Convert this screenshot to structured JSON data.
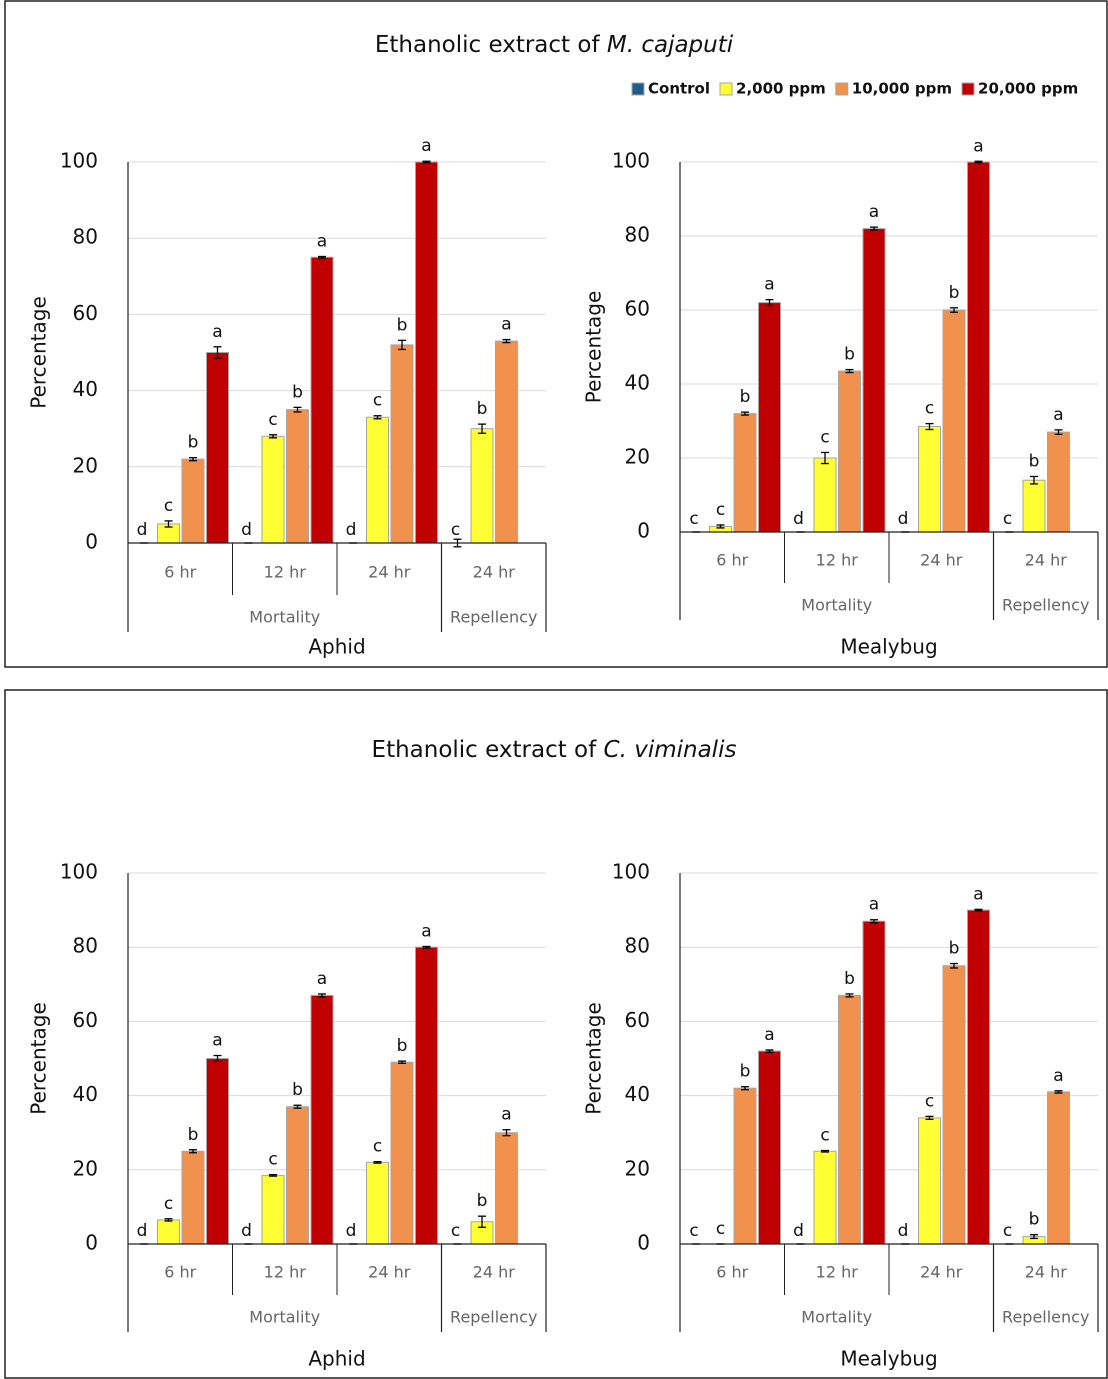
{
  "chart_data": [
    {
      "type": "bar",
      "title_prefix": "Ethanolic extract of",
      "title_species": "M. cajaputi",
      "legend": "top-right",
      "xlabel": "Aphid",
      "ylabel": "Percentage",
      "groups": [
        {
          "name": "Mortality",
          "categories": [
            "6 hr",
            "12 hr",
            "24 hr"
          ]
        },
        {
          "name": "Repellency",
          "categories": [
            "24 hr"
          ]
        }
      ],
      "ylim": [
        0,
        100
      ],
      "yticks": [
        0,
        20,
        40,
        60,
        80,
        100
      ],
      "grid": true,
      "series": [
        {
          "name": "Control",
          "color": "#1f5c8a",
          "values": [
            0,
            0,
            0,
            0
          ],
          "errors": [
            0,
            0,
            0,
            1
          ],
          "letters": [
            "d",
            "d",
            "d",
            "c"
          ]
        },
        {
          "name": "2,000 ppm",
          "color": "#ffff33",
          "values": [
            5,
            28,
            33,
            30
          ],
          "errors": [
            0.8,
            0.4,
            0.4,
            1.2
          ],
          "letters": [
            "c",
            "c",
            "c",
            "b"
          ]
        },
        {
          "name": "10,000 ppm",
          "color": "#f0914e",
          "values": [
            22,
            35,
            52,
            53
          ],
          "errors": [
            0.4,
            0.6,
            1.2,
            0.4
          ],
          "letters": [
            "b",
            "b",
            "b",
            "a"
          ]
        },
        {
          "name": "20,000 ppm",
          "color": "#c00000",
          "values": [
            50,
            75,
            100,
            null
          ],
          "errors": [
            1.5,
            0.2,
            0.2,
            null
          ],
          "letters": [
            "a",
            "a",
            "a",
            null
          ]
        }
      ]
    },
    {
      "type": "bar",
      "xlabel": "Mealybug",
      "ylabel": "Percentage",
      "groups": [
        {
          "name": "Mortality",
          "categories": [
            "6 hr",
            "12 hr",
            "24 hr"
          ]
        },
        {
          "name": "Repellency",
          "categories": [
            "24 hr"
          ]
        }
      ],
      "ylim": [
        0,
        100
      ],
      "yticks": [
        0,
        20,
        40,
        60,
        80,
        100
      ],
      "grid": true,
      "series": [
        {
          "name": "Control",
          "color": "#1f5c8a",
          "values": [
            0,
            0,
            0,
            0
          ],
          "errors": [
            0,
            0,
            0,
            0
          ],
          "letters": [
            "c",
            "d",
            "d",
            "c"
          ]
        },
        {
          "name": "2,000 ppm",
          "color": "#ffff33",
          "values": [
            1.5,
            20,
            28.5,
            14
          ],
          "errors": [
            0.4,
            1.5,
            0.8,
            1
          ],
          "letters": [
            "c",
            "c",
            "c",
            "b"
          ]
        },
        {
          "name": "10,000 ppm",
          "color": "#f0914e",
          "values": [
            32,
            43.5,
            60,
            27
          ],
          "errors": [
            0.4,
            0.4,
            0.6,
            0.6
          ],
          "letters": [
            "b",
            "b",
            "b",
            "a"
          ]
        },
        {
          "name": "20,000 ppm",
          "color": "#c00000",
          "values": [
            62,
            82,
            100,
            null
          ],
          "errors": [
            0.8,
            0.4,
            0.2,
            null
          ],
          "letters": [
            "a",
            "a",
            "a",
            null
          ]
        }
      ]
    },
    {
      "type": "bar",
      "title_prefix": "Ethanolic extract of",
      "title_species": "C. viminalis",
      "xlabel": "Aphid",
      "ylabel": "Percentage",
      "groups": [
        {
          "name": "Mortality",
          "categories": [
            "6 hr",
            "12 hr",
            "24 hr"
          ]
        },
        {
          "name": "Repellency",
          "categories": [
            "24 hr"
          ]
        }
      ],
      "ylim": [
        0,
        100
      ],
      "yticks": [
        0,
        20,
        40,
        60,
        80,
        100
      ],
      "grid": true,
      "series": [
        {
          "name": "Control",
          "color": "#1f5c8a",
          "values": [
            0,
            0,
            0,
            0
          ],
          "errors": [
            0,
            0,
            0,
            0
          ],
          "letters": [
            "d",
            "d",
            "d",
            "c"
          ]
        },
        {
          "name": "2,000 ppm",
          "color": "#ffff33",
          "values": [
            6.5,
            18.5,
            22,
            6
          ],
          "errors": [
            0.3,
            0.2,
            0.2,
            1.5
          ],
          "letters": [
            "c",
            "c",
            "c",
            "b"
          ]
        },
        {
          "name": "10,000 ppm",
          "color": "#f0914e",
          "values": [
            25,
            37,
            49,
            30
          ],
          "errors": [
            0.4,
            0.4,
            0.3,
            0.8
          ],
          "letters": [
            "b",
            "b",
            "b",
            "a"
          ]
        },
        {
          "name": "20,000 ppm",
          "color": "#c00000",
          "values": [
            50,
            67,
            80,
            null
          ],
          "errors": [
            0.8,
            0.4,
            0.2,
            null
          ],
          "letters": [
            "a",
            "a",
            "a",
            null
          ]
        }
      ]
    },
    {
      "type": "bar",
      "xlabel": "Mealybug",
      "ylabel": "Percentage",
      "groups": [
        {
          "name": "Mortality",
          "categories": [
            "6 hr",
            "12 hr",
            "24 hr"
          ]
        },
        {
          "name": "Repellency",
          "categories": [
            "24 hr"
          ]
        }
      ],
      "ylim": [
        0,
        100
      ],
      "yticks": [
        0,
        20,
        40,
        60,
        80,
        100
      ],
      "grid": true,
      "series": [
        {
          "name": "Control",
          "color": "#1f5c8a",
          "values": [
            0,
            0,
            0,
            0
          ],
          "errors": [
            0,
            0,
            0,
            0
          ],
          "letters": [
            "c",
            "d",
            "d",
            "c"
          ]
        },
        {
          "name": "2,000 ppm",
          "color": "#ffff33",
          "values": [
            0,
            25,
            34,
            2
          ],
          "errors": [
            0,
            0.2,
            0.4,
            0.5
          ],
          "letters": [
            "c",
            "c",
            "c",
            "b"
          ]
        },
        {
          "name": "10,000 ppm",
          "color": "#f0914e",
          "values": [
            42,
            67,
            75,
            41
          ],
          "errors": [
            0.4,
            0.4,
            0.6,
            0.3
          ],
          "letters": [
            "b",
            "b",
            "b",
            "a"
          ]
        },
        {
          "name": "20,000 ppm",
          "color": "#c00000",
          "values": [
            52,
            87,
            90,
            null
          ],
          "errors": [
            0.3,
            0.4,
            0.2,
            null
          ],
          "letters": [
            "a",
            "a",
            "a",
            null
          ]
        }
      ]
    }
  ]
}
